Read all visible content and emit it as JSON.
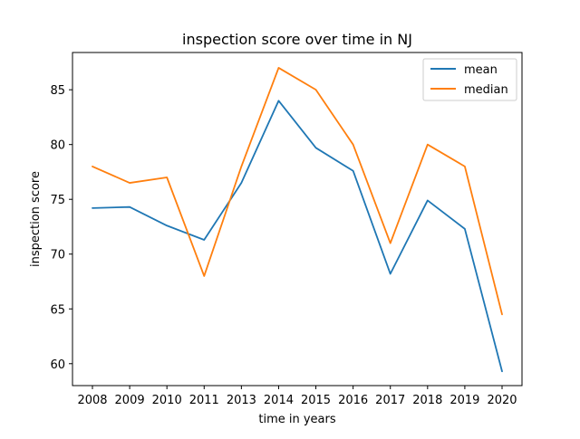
{
  "chart_data": {
    "type": "line",
    "title": "inspection score over time in NJ",
    "xlabel": "time in years",
    "ylabel": "inspection score",
    "categories": [
      "2008",
      "2009",
      "2010",
      "2011",
      "2013",
      "2014",
      "2015",
      "2016",
      "2017",
      "2018",
      "2019",
      "2020"
    ],
    "series": [
      {
        "name": "mean",
        "color": "#1f77b4",
        "values": [
          74.2,
          74.3,
          72.6,
          71.3,
          76.5,
          84.0,
          79.7,
          77.6,
          68.2,
          74.9,
          72.3,
          59.3
        ]
      },
      {
        "name": "median",
        "color": "#ff7f0e",
        "values": [
          78.0,
          76.5,
          77.0,
          68.0,
          78.0,
          87.0,
          85.0,
          80.0,
          71.0,
          80.0,
          78.0,
          64.5
        ]
      }
    ],
    "yticks": [
      60,
      65,
      70,
      75,
      80,
      85
    ],
    "ylim": [
      58.0,
      88.4
    ],
    "grid": false,
    "legend_position": "top-right"
  }
}
